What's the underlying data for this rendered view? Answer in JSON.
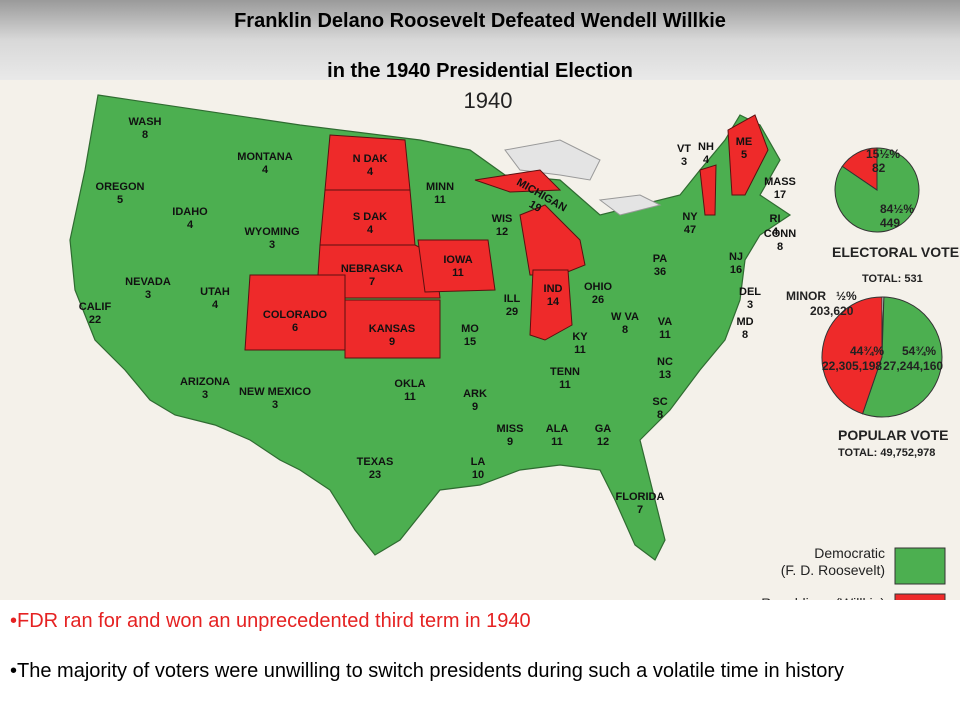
{
  "title": {
    "line1": "Franklin Delano Roosevelt Defeated Wendell Willkie",
    "line2": "in the 1940 Presidential Election"
  },
  "map": {
    "year": "1940",
    "states": [
      {
        "name": "WASH",
        "votes": 8,
        "party": "Democratic"
      },
      {
        "name": "OREGON",
        "votes": 5,
        "party": "Democratic"
      },
      {
        "name": "CALIF",
        "votes": 22,
        "party": "Democratic"
      },
      {
        "name": "NEVADA",
        "votes": 3,
        "party": "Democratic"
      },
      {
        "name": "IDAHO",
        "votes": 4,
        "party": "Democratic"
      },
      {
        "name": "MONTANA",
        "votes": 4,
        "party": "Democratic"
      },
      {
        "name": "WYOMING",
        "votes": 3,
        "party": "Democratic"
      },
      {
        "name": "UTAH",
        "votes": 4,
        "party": "Democratic"
      },
      {
        "name": "ARIZONA",
        "votes": 3,
        "party": "Democratic"
      },
      {
        "name": "NEW MEXICO",
        "votes": 3,
        "party": "Democratic"
      },
      {
        "name": "COLORADO",
        "votes": 6,
        "party": "Republican"
      },
      {
        "name": "N DAK",
        "votes": 4,
        "party": "Republican"
      },
      {
        "name": "S DAK",
        "votes": 4,
        "party": "Republican"
      },
      {
        "name": "NEBRASKA",
        "votes": 7,
        "party": "Republican"
      },
      {
        "name": "KANSAS",
        "votes": 9,
        "party": "Republican"
      },
      {
        "name": "OKLA",
        "votes": 11,
        "party": "Democratic"
      },
      {
        "name": "TEXAS",
        "votes": 23,
        "party": "Democratic"
      },
      {
        "name": "MINN",
        "votes": 11,
        "party": "Democratic"
      },
      {
        "name": "IOWA",
        "votes": 11,
        "party": "Republican"
      },
      {
        "name": "MO",
        "votes": 15,
        "party": "Democratic"
      },
      {
        "name": "ARK",
        "votes": 9,
        "party": "Democratic"
      },
      {
        "name": "LA",
        "votes": 10,
        "party": "Democratic"
      },
      {
        "name": "WIS",
        "votes": 12,
        "party": "Democratic"
      },
      {
        "name": "ILL",
        "votes": 29,
        "party": "Democratic"
      },
      {
        "name": "MICHIGAN",
        "votes": 19,
        "party": "Republican"
      },
      {
        "name": "IND",
        "votes": 14,
        "party": "Republican"
      },
      {
        "name": "MISS",
        "votes": 9,
        "party": "Democratic"
      },
      {
        "name": "KY",
        "votes": 11,
        "party": "Democratic"
      },
      {
        "name": "TENN",
        "votes": 11,
        "party": "Democratic"
      },
      {
        "name": "ALA",
        "votes": 11,
        "party": "Democratic"
      },
      {
        "name": "GA",
        "votes": 12,
        "party": "Democratic"
      },
      {
        "name": "FLORIDA",
        "votes": 7,
        "party": "Democratic"
      },
      {
        "name": "OHIO",
        "votes": 26,
        "party": "Democratic"
      },
      {
        "name": "W VA",
        "votes": 8,
        "party": "Democratic"
      },
      {
        "name": "VA",
        "votes": 11,
        "party": "Democratic"
      },
      {
        "name": "NC",
        "votes": 13,
        "party": "Democratic"
      },
      {
        "name": "SC",
        "votes": 8,
        "party": "Democratic"
      },
      {
        "name": "PA",
        "votes": 36,
        "party": "Democratic"
      },
      {
        "name": "NY",
        "votes": 47,
        "party": "Democratic"
      },
      {
        "name": "VT",
        "votes": 3,
        "party": "Republican"
      },
      {
        "name": "NH",
        "votes": 4,
        "party": "Democratic"
      },
      {
        "name": "ME",
        "votes": 5,
        "party": "Republican"
      },
      {
        "name": "MASS",
        "votes": 17,
        "party": "Democratic"
      },
      {
        "name": "RI",
        "votes": 4,
        "party": "Democratic"
      },
      {
        "name": "CONN",
        "votes": 8,
        "party": "Democratic"
      },
      {
        "name": "NJ",
        "votes": 16,
        "party": "Democratic"
      },
      {
        "name": "DEL",
        "votes": 3,
        "party": "Democratic"
      },
      {
        "name": "MD",
        "votes": 8,
        "party": "Democratic"
      }
    ]
  },
  "electoral_vote": {
    "title": "ELECTORAL VOTE",
    "total": "TOTAL: 531",
    "slices": [
      {
        "party": "Republican",
        "value": 15.5,
        "label": "15½%",
        "count": 82
      },
      {
        "party": "Democratic",
        "value": 84.5,
        "label": "84½%",
        "count": 449
      }
    ]
  },
  "popular_vote": {
    "title": "POPULAR VOTE",
    "total": "TOTAL: 49,752,978",
    "slices": [
      {
        "party": "Minor",
        "name": "MINOR",
        "value": 0.5,
        "label": "½%",
        "count": "203,620"
      },
      {
        "party": "Democratic",
        "value": 54.75,
        "label": "54¾%",
        "count": "27,244,160"
      },
      {
        "party": "Republican",
        "value": 44.75,
        "label": "44¾%",
        "count": "22,305,198"
      }
    ]
  },
  "legend": [
    {
      "party": "Democratic",
      "lines": [
        "Democratic",
        "(F. D. Roosevelt)"
      ],
      "color": "#4caf50"
    },
    {
      "party": "Republican",
      "lines": [
        "Republican (Willkie)"
      ],
      "color": "#ee2a2a"
    }
  ],
  "bullets": [
    {
      "text": "FDR ran for and won an unprecedented third term in 1940",
      "color": "#e52222"
    },
    {
      "text": "The majority of voters were unwilling to switch presidents during such a volatile time in history",
      "color": "#000000"
    }
  ]
}
